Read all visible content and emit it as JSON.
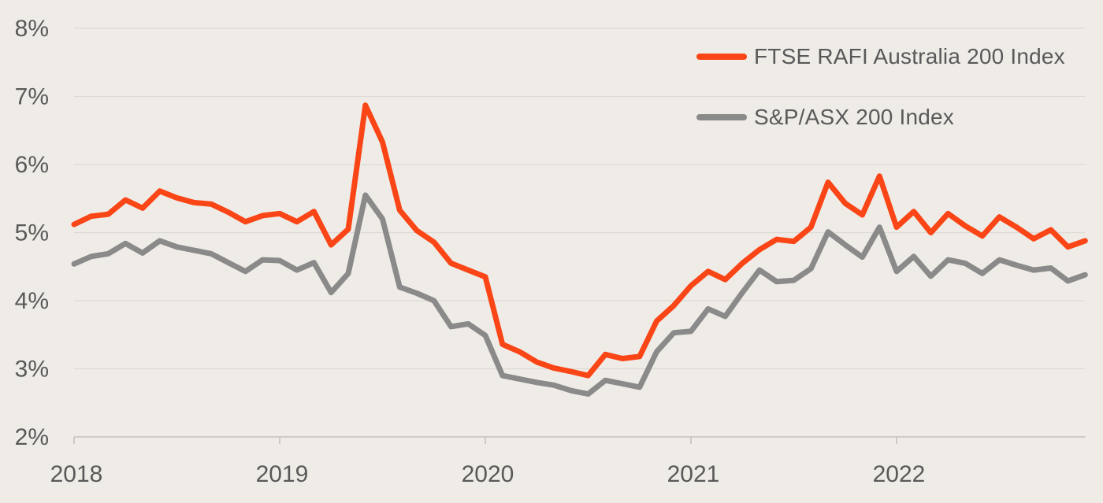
{
  "chart_data": {
    "type": "line",
    "title": "",
    "frequency": "monthly",
    "x_start": "Jan 2018",
    "x_end": "Dec 2022",
    "x_tick_labels": [
      "2018",
      "2019",
      "2020",
      "2021",
      "2022"
    ],
    "y_tick_labels": [
      "8%",
      "7%",
      "6%",
      "5%",
      "4%",
      "3%",
      "2%"
    ],
    "y_axis": {
      "min": 2,
      "max": 8,
      "step": 1,
      "unit": "%"
    },
    "grid": "horizontal",
    "legend_position": "top-right",
    "series": [
      {
        "id": "ftse-rafi-australia-200",
        "name": "FTSE RAFI Australia 200 Index",
        "color": "#FA4616",
        "values": [
          5.12,
          5.24,
          5.27,
          5.48,
          5.36,
          5.61,
          5.51,
          5.44,
          5.42,
          5.3,
          5.16,
          5.25,
          5.28,
          5.16,
          5.31,
          4.82,
          5.05,
          6.87,
          6.33,
          5.33,
          5.03,
          4.86,
          4.55,
          4.45,
          4.35,
          3.36,
          3.25,
          3.1,
          3.01,
          2.96,
          2.9,
          3.21,
          3.15,
          3.18,
          3.7,
          3.93,
          4.22,
          4.43,
          4.31,
          4.55,
          4.75,
          4.9,
          4.87,
          5.08,
          5.74,
          5.43,
          5.26,
          5.83,
          5.08,
          5.31,
          5.0,
          5.28,
          5.1,
          4.95,
          5.23,
          5.08,
          4.91,
          5.04,
          4.79,
          4.88
        ]
      },
      {
        "id": "sp-asx-200",
        "name": "S&P/ASX 200 Index",
        "color": "#8A8A8A",
        "values": [
          4.54,
          4.65,
          4.69,
          4.84,
          4.7,
          4.88,
          4.79,
          4.74,
          4.69,
          4.56,
          4.43,
          4.6,
          4.59,
          4.45,
          4.56,
          4.12,
          4.4,
          5.55,
          5.2,
          4.2,
          4.11,
          4.0,
          3.62,
          3.66,
          3.49,
          2.9,
          2.85,
          2.8,
          2.76,
          2.68,
          2.63,
          2.83,
          2.78,
          2.73,
          3.25,
          3.53,
          3.55,
          3.88,
          3.77,
          4.12,
          4.45,
          4.28,
          4.3,
          4.47,
          5.01,
          4.82,
          4.64,
          5.08,
          4.43,
          4.65,
          4.36,
          4.6,
          4.55,
          4.4,
          4.6,
          4.52,
          4.45,
          4.48,
          4.29,
          4.38
        ]
      }
    ],
    "style": {
      "background": "#EFECE8",
      "label_color": "#595959",
      "grid_color": "#DDD9D5",
      "axis_color": "#C9C6C2",
      "line_width": 7
    }
  },
  "legend": {
    "items": [
      {
        "label": "FTSE RAFI Australia 200 Index",
        "color": "#FA4616"
      },
      {
        "label": "S&P/ASX 200 Index",
        "color": "#8A8A8A"
      }
    ]
  }
}
